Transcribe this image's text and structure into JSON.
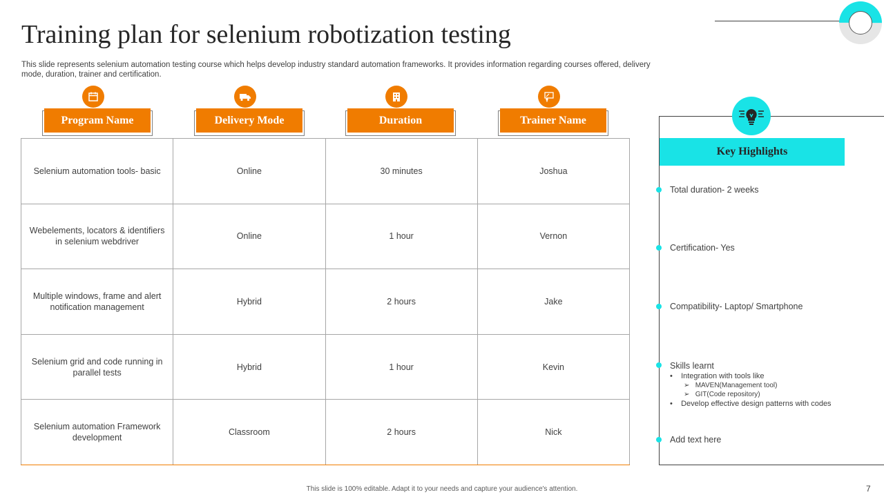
{
  "title": "Training plan for selenium robotization testing",
  "subtitle": "This slide represents selenium automation testing course which helps develop industry standard automation frameworks. It provides information regarding courses offered, delivery mode, duration, trainer and certification.",
  "colors": {
    "accent": "#f07c00",
    "highlight": "#19e3e6"
  },
  "table": {
    "headers": [
      {
        "label": "Program Name",
        "icon": "calendar-icon"
      },
      {
        "label": "Delivery Mode",
        "icon": "truck-icon"
      },
      {
        "label": "Duration",
        "icon": "building-icon"
      },
      {
        "label": "Trainer Name",
        "icon": "trainer-icon"
      }
    ],
    "rows": [
      [
        "Selenium automation tools- basic",
        "Online",
        "30 minutes",
        "Joshua"
      ],
      [
        "Webelements, locators & identifiers in selenium webdriver",
        "Online",
        "1 hour",
        "Vernon"
      ],
      [
        "Multiple windows, frame and alert notification management",
        "Hybrid",
        "2 hours",
        "Jake"
      ],
      [
        "Selenium grid and code running in parallel tests",
        "Hybrid",
        "1 hour",
        "Kevin"
      ],
      [
        "Selenium automation Framework development",
        "Classroom",
        "2 hours",
        "Nick"
      ]
    ]
  },
  "highlights": {
    "icon": "lightbulb-icon",
    "title": "Key Highlights",
    "items": [
      "Total duration- 2 weeks",
      "Certification- Yes",
      "Compatibility- Laptop/ Smartphone",
      "Skills learnt",
      "Add text here"
    ],
    "skills": {
      "bullet1": "Integration with tools like",
      "sub1": "MAVEN(Management tool)",
      "sub2": "GIT(Code repository)",
      "bullet2": "Develop effective design patterns with codes"
    }
  },
  "footer": "This slide is 100% editable. Adapt it to your needs and capture your audience's attention.",
  "page_number": "7"
}
